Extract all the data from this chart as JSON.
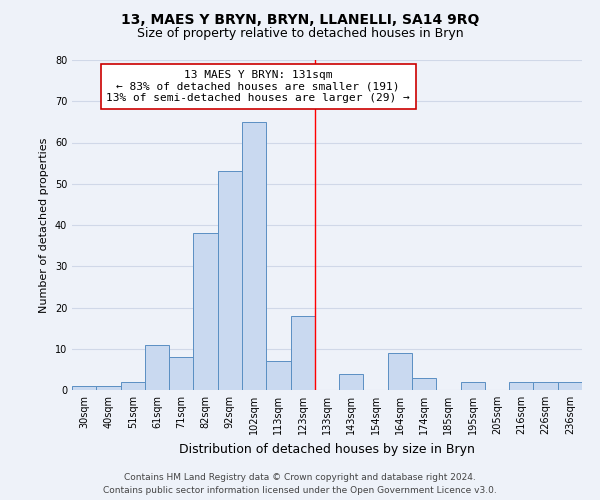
{
  "title": "13, MAES Y BRYN, BRYN, LLANELLI, SA14 9RQ",
  "subtitle": "Size of property relative to detached houses in Bryn",
  "xlabel": "Distribution of detached houses by size in Bryn",
  "ylabel": "Number of detached properties",
  "categories": [
    "30sqm",
    "40sqm",
    "51sqm",
    "61sqm",
    "71sqm",
    "82sqm",
    "92sqm",
    "102sqm",
    "113sqm",
    "123sqm",
    "133sqm",
    "143sqm",
    "154sqm",
    "164sqm",
    "174sqm",
    "185sqm",
    "195sqm",
    "205sqm",
    "216sqm",
    "226sqm",
    "236sqm"
  ],
  "values": [
    1,
    1,
    2,
    11,
    8,
    38,
    53,
    65,
    7,
    18,
    0,
    4,
    0,
    9,
    3,
    0,
    2,
    0,
    2,
    2,
    2
  ],
  "bar_color": "#c9d9f0",
  "bar_edge_color": "#5a8fc3",
  "property_line_color": "red",
  "property_line_index": 10,
  "annotation_title": "13 MAES Y BRYN: 131sqm",
  "annotation_line1": "← 83% of detached houses are smaller (191)",
  "annotation_line2": "13% of semi-detached houses are larger (29) →",
  "annotation_box_color": "white",
  "annotation_box_edge_color": "#cc0000",
  "ylim": [
    0,
    80
  ],
  "yticks": [
    0,
    10,
    20,
    30,
    40,
    50,
    60,
    70,
    80
  ],
  "background_color": "#eef2f9",
  "grid_color": "#d0d8e8",
  "footer_line1": "Contains HM Land Registry data © Crown copyright and database right 2024.",
  "footer_line2": "Contains public sector information licensed under the Open Government Licence v3.0.",
  "title_fontsize": 10,
  "subtitle_fontsize": 9,
  "ylabel_fontsize": 8,
  "xlabel_fontsize": 9,
  "tick_fontsize": 7,
  "annotation_fontsize": 8,
  "footer_fontsize": 6.5
}
